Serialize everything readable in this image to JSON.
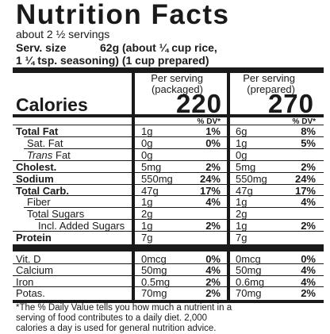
{
  "header": {
    "title": "Nutrition Facts",
    "servings": "about 2 ½ servings",
    "serving_size_label": "Serv. size",
    "serving_size_line1": "62g (about ¼ cup rice,",
    "serving_size_line2": "1 ¼ tsp. seasoning) (1 cup prepared)"
  },
  "columns": [
    {
      "line1": "Per serving",
      "line2": "(packaged)",
      "calories": "220"
    },
    {
      "line1": "Per serving",
      "line2": "(prepared)",
      "calories": "270"
    }
  ],
  "calories_label": "Calories",
  "dv_header": "% DV*",
  "rows": [
    {
      "label": "Total Fat",
      "bold": true,
      "indent": 0,
      "packaged": {
        "amount": "1g",
        "dv": "1%"
      },
      "prepared": {
        "amount": "6g",
        "dv": "8%"
      }
    },
    {
      "label": "Sat. Fat",
      "bold": false,
      "indent": 1,
      "packaged": {
        "amount": "0g",
        "dv": "0%"
      },
      "prepared": {
        "amount": "1g",
        "dv": "5%"
      }
    },
    {
      "label_italic": "Trans",
      "label": "Fat",
      "bold": false,
      "indent": 1,
      "packaged": {
        "amount": "0g"
      },
      "prepared": {
        "amount": "0g"
      }
    },
    {
      "label": "Cholest.",
      "bold": true,
      "indent": 0,
      "packaged": {
        "amount": "5mg",
        "dv": "2%"
      },
      "prepared": {
        "amount": "5mg",
        "dv": "2%"
      }
    },
    {
      "label": "Sodium",
      "bold": true,
      "indent": 0,
      "packaged": {
        "amount": "550mg",
        "dv": "24%"
      },
      "prepared": {
        "amount": "550mg",
        "dv": "24%"
      }
    },
    {
      "label": "Total Carb.",
      "bold": true,
      "indent": 0,
      "packaged": {
        "amount": "47g",
        "dv": "17%"
      },
      "prepared": {
        "amount": "47g",
        "dv": "17%"
      }
    },
    {
      "label": "Fiber",
      "bold": false,
      "indent": 1,
      "packaged": {
        "amount": "1g",
        "dv": "4%"
      },
      "prepared": {
        "amount": "1g",
        "dv": "4%"
      }
    },
    {
      "label": "Total Sugars",
      "bold": false,
      "indent": 1,
      "packaged": {
        "amount": "2g"
      },
      "prepared": {
        "amount": "2g"
      }
    },
    {
      "label": "Incl. Added Sugars",
      "bold": false,
      "indent": 2,
      "packaged": {
        "amount": "1g",
        "dv": "2%"
      },
      "prepared": {
        "amount": "1g",
        "dv": "2%"
      }
    },
    {
      "label": "Protein",
      "bold": true,
      "indent": 0,
      "packaged": {
        "amount": "7g"
      },
      "prepared": {
        "amount": "7g"
      }
    }
  ],
  "micronutrients": [
    {
      "label": "Vit. D",
      "packaged": {
        "amount": "0mcg",
        "dv": "0%"
      },
      "prepared": {
        "amount": "0mcg",
        "dv": "0%"
      }
    },
    {
      "label": "Calcium",
      "packaged": {
        "amount": "50mg",
        "dv": "4%"
      },
      "prepared": {
        "amount": "50mg",
        "dv": "4%"
      }
    },
    {
      "label": "Iron",
      "packaged": {
        "amount": "0.5mg",
        "dv": "2%"
      },
      "prepared": {
        "amount": "0.6mg",
        "dv": "4%"
      }
    },
    {
      "label": "Potas.",
      "packaged": {
        "amount": "70mg",
        "dv": "2%"
      },
      "prepared": {
        "amount": "70mg",
        "dv": "2%"
      }
    }
  ],
  "footnote": [
    "*The % Daily Value tells you how much a nutrient in a",
    "serving of food contributes to a daily diet. 2,000",
    "calories a day is used for general nutrition advice."
  ]
}
